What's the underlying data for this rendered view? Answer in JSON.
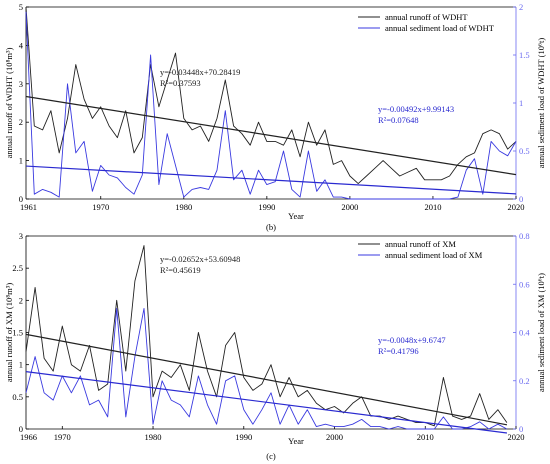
{
  "chart_data": [
    {
      "type": "line",
      "panel_label": "(b)",
      "xlabel": "Year",
      "ylabel_left": "annual runoff of WDHT (10⁸m³)",
      "ylabel_right": "annual sediment load of WDHT (10⁶t)",
      "x_start_label": "1961",
      "xlim": [
        1961,
        2020
      ],
      "xticks": [
        1970,
        1980,
        1990,
        2000,
        2010,
        2020
      ],
      "ylim_left": [
        0,
        5
      ],
      "yticks_left": [
        "0",
        "1",
        "2",
        "3",
        "4",
        "5"
      ],
      "ylim_right": [
        0,
        2
      ],
      "yticks_right": [
        "0",
        "0.5",
        "1",
        "1.5",
        "2"
      ],
      "legend_position": "top-right",
      "years": [
        1961,
        1962,
        1963,
        1964,
        1965,
        1966,
        1967,
        1968,
        1969,
        1970,
        1971,
        1972,
        1973,
        1974,
        1975,
        1976,
        1977,
        1978,
        1979,
        1980,
        1981,
        1982,
        1983,
        1984,
        1985,
        1986,
        1987,
        1988,
        1989,
        1990,
        1991,
        1992,
        1993,
        1994,
        1995,
        1996,
        1997,
        1998,
        1999,
        2000,
        2001,
        2002,
        2003,
        2004,
        2005,
        2006,
        2007,
        2008,
        2009,
        2010,
        2011,
        2012,
        2013,
        2014,
        2015,
        2016,
        2017,
        2018,
        2019,
        2020
      ],
      "series": [
        {
          "name": "annual runoff of WDHT",
          "axis": "left",
          "color": "#222222",
          "values": [
            5.0,
            1.9,
            1.8,
            2.3,
            1.2,
            2.1,
            3.5,
            2.6,
            2.1,
            2.4,
            1.9,
            1.6,
            2.3,
            1.2,
            1.6,
            3.5,
            2.4,
            3.1,
            3.8,
            2.1,
            1.8,
            1.9,
            1.5,
            2.1,
            3.1,
            1.9,
            1.7,
            1.4,
            2.0,
            1.5,
            1.5,
            1.4,
            1.8,
            1.1,
            2.0,
            1.4,
            1.8,
            0.9,
            1.0,
            0.6,
            0.4,
            0.6,
            0.8,
            1.0,
            0.8,
            0.6,
            0.7,
            0.8,
            0.5,
            0.5,
            0.5,
            0.6,
            0.9,
            1.1,
            1.2,
            1.7,
            1.8,
            1.7,
            1.3,
            1.5
          ]
        },
        {
          "name": "annual sediment load  of WDHT",
          "axis": "right",
          "color": "#3a3ae0",
          "values": [
            1.95,
            0.05,
            0.1,
            0.07,
            0.02,
            1.2,
            0.48,
            0.6,
            0.08,
            0.35,
            0.25,
            0.22,
            0.12,
            0.05,
            0.25,
            1.5,
            0.15,
            0.68,
            0.35,
            0.02,
            0.1,
            0.12,
            0.1,
            0.3,
            0.92,
            0.2,
            0.3,
            0.05,
            0.3,
            0.15,
            0.18,
            0.5,
            0.1,
            0.02,
            0.5,
            0.08,
            0.2,
            0.02,
            0.02,
            0.0,
            0.0,
            0.0,
            0.0,
            0.0,
            0.0,
            0.0,
            0.0,
            0.0,
            0.0,
            0.0,
            0.0,
            0.0,
            0.02,
            0.3,
            0.42,
            0.05,
            0.6,
            0.5,
            0.45,
            0.6
          ]
        }
      ],
      "trendlines": [
        {
          "series": "annual runoff of WDHT",
          "axis": "left",
          "color": "#222222",
          "equation": "y=-0.03448x+70.28419",
          "r2": "R²=0.37593",
          "slope": -0.03448,
          "intercept": 70.28419
        },
        {
          "series": "annual sediment load  of WDHT",
          "axis": "right",
          "color": "#2a2ad0",
          "equation": "y=-0.00492x+9.99143",
          "r2": "R²=0.07648",
          "slope": -0.00492,
          "intercept": 9.99143
        }
      ]
    },
    {
      "type": "line",
      "panel_label": "(c)",
      "xlabel": "Year",
      "ylabel_left": "annual runoff of XM (10⁸m³)",
      "ylabel_right": "annual sediment load of XM (10⁶t)",
      "x_start_label": "1966",
      "xlim": [
        1966,
        2020
      ],
      "xticks": [
        1970,
        1980,
        1990,
        2000,
        2010,
        2020
      ],
      "ylim_left": [
        0,
        3
      ],
      "yticks_left": [
        "0",
        "0.5",
        "1",
        "1.5",
        "2",
        "2.5",
        "3"
      ],
      "ylim_right": [
        0,
        0.8
      ],
      "yticks_right": [
        "0",
        "0.2",
        "0.4",
        "0.6",
        "0.8"
      ],
      "legend_position": "top-right",
      "years": [
        1966,
        1967,
        1968,
        1969,
        1970,
        1971,
        1972,
        1973,
        1974,
        1975,
        1976,
        1977,
        1978,
        1979,
        1980,
        1981,
        1982,
        1983,
        1984,
        1985,
        1986,
        1987,
        1988,
        1989,
        1990,
        1991,
        1992,
        1993,
        1994,
        1995,
        1996,
        1997,
        1998,
        1999,
        2000,
        2001,
        2002,
        2003,
        2004,
        2005,
        2006,
        2007,
        2008,
        2009,
        2010,
        2011,
        2012,
        2013,
        2014,
        2015,
        2016,
        2017,
        2018,
        2019
      ],
      "series": [
        {
          "name": "annual runoff of XM",
          "axis": "left",
          "color": "#222222",
          "values": [
            1.2,
            2.2,
            1.1,
            0.9,
            1.6,
            1.0,
            0.9,
            1.3,
            0.6,
            0.7,
            2.0,
            0.9,
            2.3,
            2.85,
            0.5,
            0.9,
            0.8,
            1.0,
            0.6,
            1.5,
            0.9,
            0.5,
            1.3,
            1.5,
            0.8,
            0.6,
            0.7,
            1.0,
            0.5,
            0.8,
            0.5,
            0.6,
            0.4,
            0.3,
            0.35,
            0.25,
            0.4,
            0.5,
            0.2,
            0.2,
            0.15,
            0.2,
            0.15,
            0.1,
            0.1,
            0.05,
            0.8,
            0.2,
            0.15,
            0.2,
            0.55,
            0.15,
            0.3,
            0.1
          ]
        },
        {
          "name": "annual sediment load of XM",
          "axis": "right",
          "color": "#3a3ae0",
          "values": [
            0.15,
            0.3,
            0.15,
            0.12,
            0.22,
            0.15,
            0.22,
            0.1,
            0.12,
            0.05,
            0.5,
            0.05,
            0.3,
            0.5,
            0.02,
            0.2,
            0.12,
            0.1,
            0.05,
            0.22,
            0.1,
            0.02,
            0.2,
            0.22,
            0.08,
            0.02,
            0.08,
            0.15,
            0.02,
            0.1,
            0.02,
            0.08,
            0.01,
            0.02,
            0.01,
            0.01,
            0.02,
            0.04,
            0.01,
            0.01,
            0.0,
            0.01,
            0.0,
            0.0,
            0.0,
            0.0,
            0.05,
            0.0,
            0.0,
            0.01,
            0.03,
            0.0,
            0.02,
            0.0
          ]
        }
      ],
      "trendlines": [
        {
          "series": "annual runoff of XM",
          "axis": "left",
          "color": "#222222",
          "equation": "y=-0.02652x+53.60948",
          "r2": "R²=0.45619",
          "slope": -0.02652,
          "intercept": 53.60948
        },
        {
          "series": "annual sediment load of XM",
          "axis": "right",
          "color": "#2a2ad0",
          "equation": "y=-0.0048x+9.6747",
          "r2": "R²=0.41796",
          "slope": -0.0048,
          "intercept": 9.6747
        }
      ]
    }
  ]
}
